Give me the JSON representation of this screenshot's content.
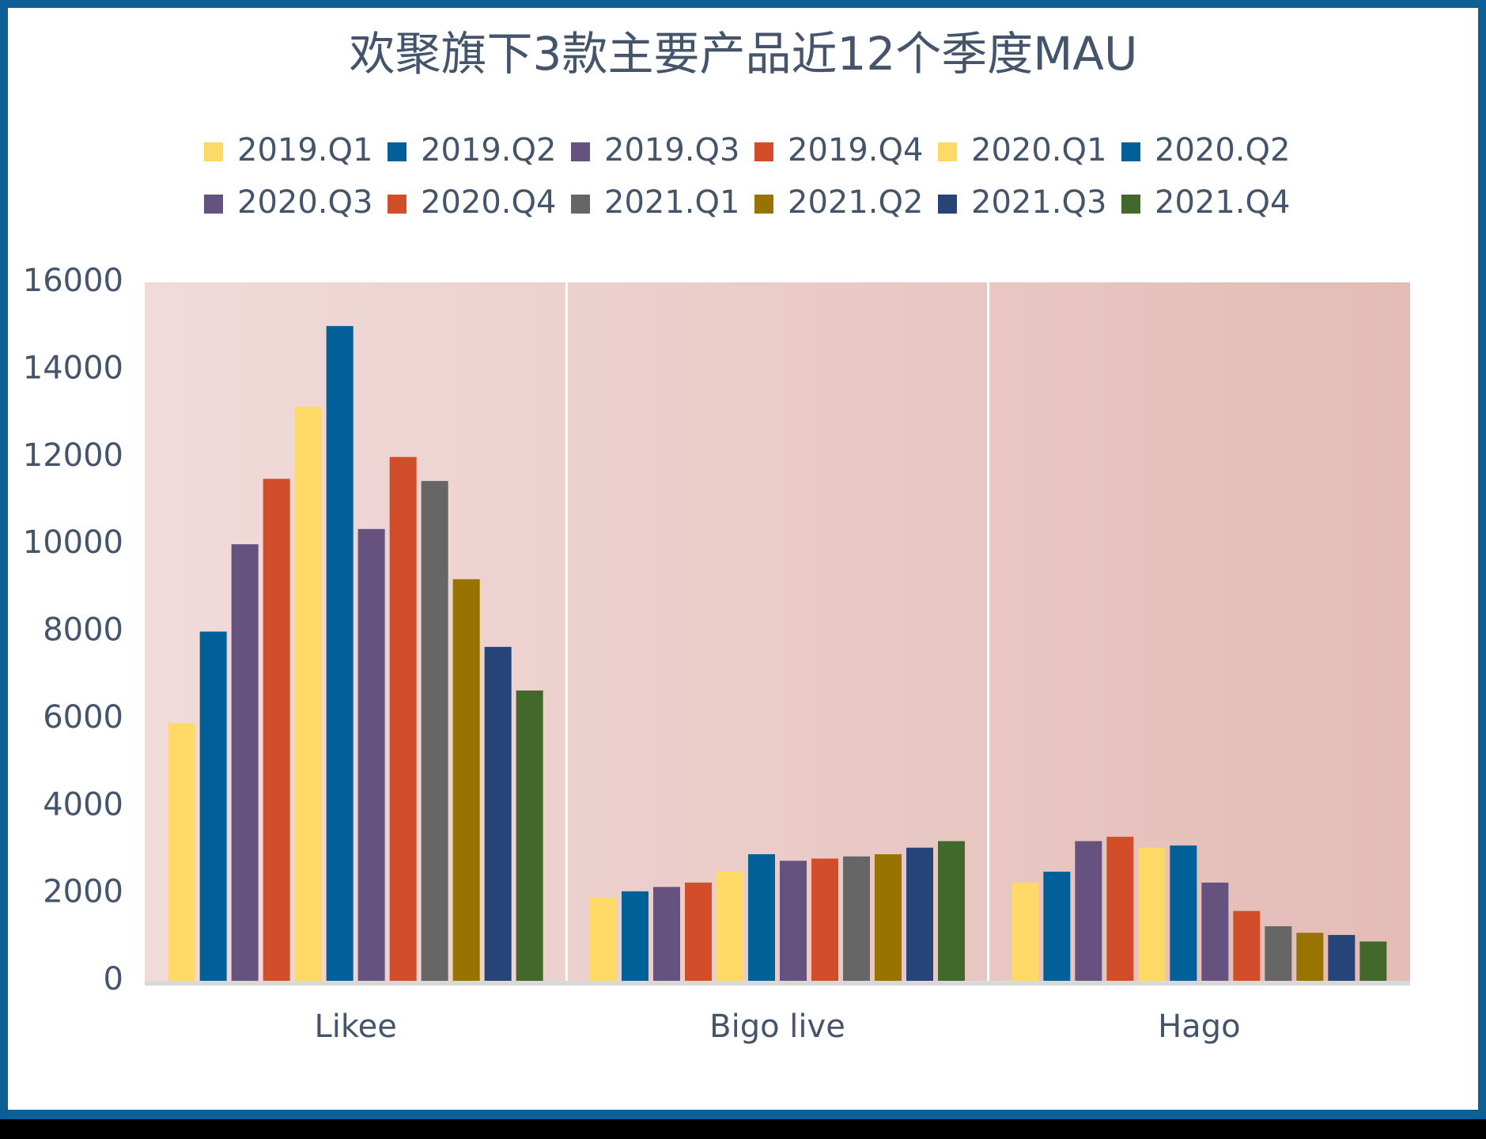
{
  "chart_data": {
    "type": "bar",
    "title": "欢聚旗下3款主要产品近12个季度MAU",
    "categories": [
      "Likee",
      "Bigo live",
      "Hago"
    ],
    "series": [
      {
        "name": "2019.Q1",
        "color": "#ffd966",
        "values": [
          5900,
          1900,
          2250
        ]
      },
      {
        "name": "2019.Q2",
        "color": "#006097",
        "values": [
          8000,
          2050,
          2500
        ]
      },
      {
        "name": "2019.Q3",
        "color": "#66527f",
        "values": [
          10000,
          2150,
          3200
        ]
      },
      {
        "name": "2019.Q4",
        "color": "#d24e2a",
        "values": [
          11500,
          2250,
          3300
        ]
      },
      {
        "name": "2020.Q1",
        "color": "#ffd966",
        "values": [
          13150,
          2500,
          3050
        ]
      },
      {
        "name": "2020.Q2",
        "color": "#006097",
        "values": [
          15000,
          2900,
          3100
        ]
      },
      {
        "name": "2020.Q3",
        "color": "#66527f",
        "values": [
          10350,
          2750,
          2250
        ]
      },
      {
        "name": "2020.Q4",
        "color": "#d24e2a",
        "values": [
          12000,
          2800,
          1600
        ]
      },
      {
        "name": "2021.Q1",
        "color": "#666666",
        "values": [
          11450,
          2850,
          1250
        ]
      },
      {
        "name": "2021.Q2",
        "color": "#997300",
        "values": [
          9200,
          2900,
          1100
        ]
      },
      {
        "name": "2021.Q3",
        "color": "#264478",
        "values": [
          7650,
          3050,
          1050
        ]
      },
      {
        "name": "2021.Q4",
        "color": "#43682b",
        "values": [
          6650,
          3200,
          900
        ]
      }
    ],
    "ylim": [
      0,
      16000
    ],
    "yticks": [
      0,
      2000,
      4000,
      6000,
      8000,
      10000,
      12000,
      14000,
      16000
    ],
    "legend": "top"
  }
}
